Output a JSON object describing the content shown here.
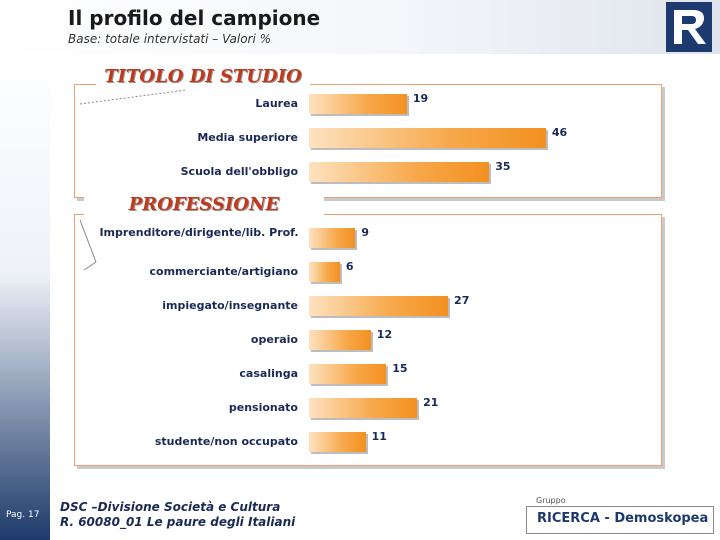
{
  "header": {
    "title": "Il profilo del campione",
    "subtitle": "Base: totale intervistati – Valori %"
  },
  "sidebar": {
    "page_label": "Pag. 17"
  },
  "footer": {
    "line1": "DSC –Divisione Società e Cultura",
    "line2": "R. 60080_01 Le paure degli Italiani",
    "brand_small": "Gruppo",
    "brand_name": "RICERCA - Demoskopea"
  },
  "colors": {
    "accent": "#c0391b",
    "bar": "#f39021",
    "text": "#1a2a55",
    "logo": "#1c3a6e"
  },
  "chart_data": [
    {
      "type": "bar",
      "orientation": "horizontal",
      "title": "TITOLO DI STUDIO",
      "categories": [
        "Laurea",
        "Media superiore",
        "Scuola dell'obbligo"
      ],
      "values": [
        19,
        46,
        35
      ]
    },
    {
      "type": "bar",
      "orientation": "horizontal",
      "title": "PROFESSIONE",
      "categories": [
        "Imprenditore/dirigente/lib. Prof.",
        "commerciante/artigiano",
        "impiegato/insegnante",
        "operaio",
        "casalinga",
        "pensionato",
        "studente/non occupato"
      ],
      "values": [
        9,
        6,
        27,
        12,
        15,
        21,
        11
      ]
    }
  ]
}
